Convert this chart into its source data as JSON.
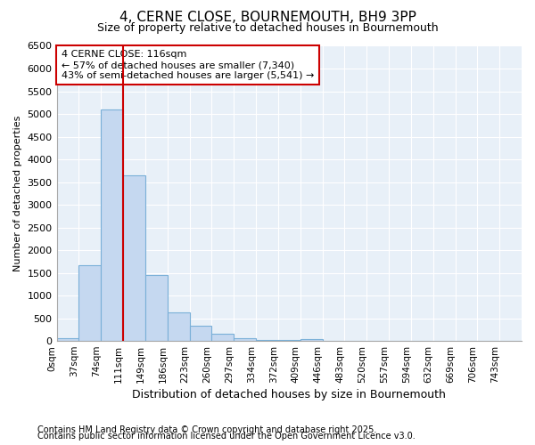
{
  "title": "4, CERNE CLOSE, BOURNEMOUTH, BH9 3PP",
  "subtitle": "Size of property relative to detached houses in Bournemouth",
  "xlabel": "Distribution of detached houses by size in Bournemouth",
  "ylabel": "Number of detached properties",
  "footnote1": "Contains HM Land Registry data © Crown copyright and database right 2025.",
  "footnote2": "Contains public sector information licensed under the Open Government Licence v3.0.",
  "bar_labels": [
    "0sqm",
    "37sqm",
    "74sqm",
    "111sqm",
    "149sqm",
    "186sqm",
    "223sqm",
    "260sqm",
    "297sqm",
    "334sqm",
    "372sqm",
    "409sqm",
    "446sqm",
    "483sqm",
    "520sqm",
    "557sqm",
    "594sqm",
    "632sqm",
    "669sqm",
    "706sqm",
    "743sqm"
  ],
  "bar_values": [
    60,
    1660,
    5100,
    3650,
    1450,
    620,
    330,
    150,
    60,
    20,
    15,
    40,
    5,
    3,
    2,
    1,
    1,
    1,
    0,
    0,
    0
  ],
  "bar_color": "#c5d8f0",
  "bar_edge_color": "#7ab0d8",
  "plot_bg_color": "#e8f0f8",
  "fig_bg_color": "#ffffff",
  "grid_color": "#ffffff",
  "property_line_x": 111,
  "property_line_color": "#cc0000",
  "annotation_text": "4 CERNE CLOSE: 116sqm\n← 57% of detached houses are smaller (7,340)\n43% of semi-detached houses are larger (5,541) →",
  "annotation_box_color": "#cc0000",
  "ylim": [
    0,
    6500
  ],
  "yticks": [
    0,
    500,
    1000,
    1500,
    2000,
    2500,
    3000,
    3500,
    4000,
    4500,
    5000,
    5500,
    6000,
    6500
  ],
  "bin_width": 37
}
